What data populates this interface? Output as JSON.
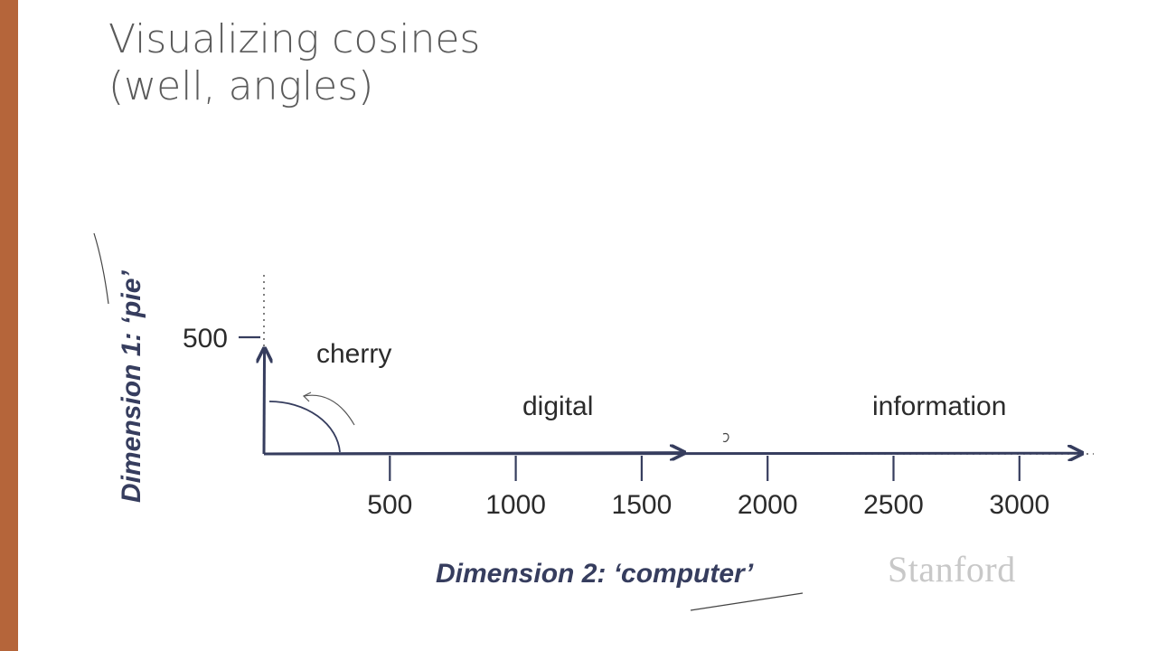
{
  "slide": {
    "title_line1": "Visualizing cosines",
    "title_line2": "(well, angles)",
    "footer_logo": "Stanford",
    "accent_color": "#b5653a"
  },
  "chart_data": {
    "type": "vector",
    "ylabel": "Dimension 1: ‘pie’",
    "xlabel": "Dimension 2: ‘computer’",
    "x_ticks": [
      500,
      1000,
      1500,
      2000,
      2500,
      3000
    ],
    "y_ticks": [
      500
    ],
    "xlim": [
      0,
      3250
    ],
    "ylim": [
      0,
      680
    ],
    "vectors": [
      {
        "name": "cherry",
        "x": 2,
        "y": 442
      },
      {
        "name": "digital",
        "x": 1670,
        "y": 5
      },
      {
        "name": "information",
        "x": 3250,
        "y": 3
      }
    ],
    "line_color": "#363d5e"
  }
}
